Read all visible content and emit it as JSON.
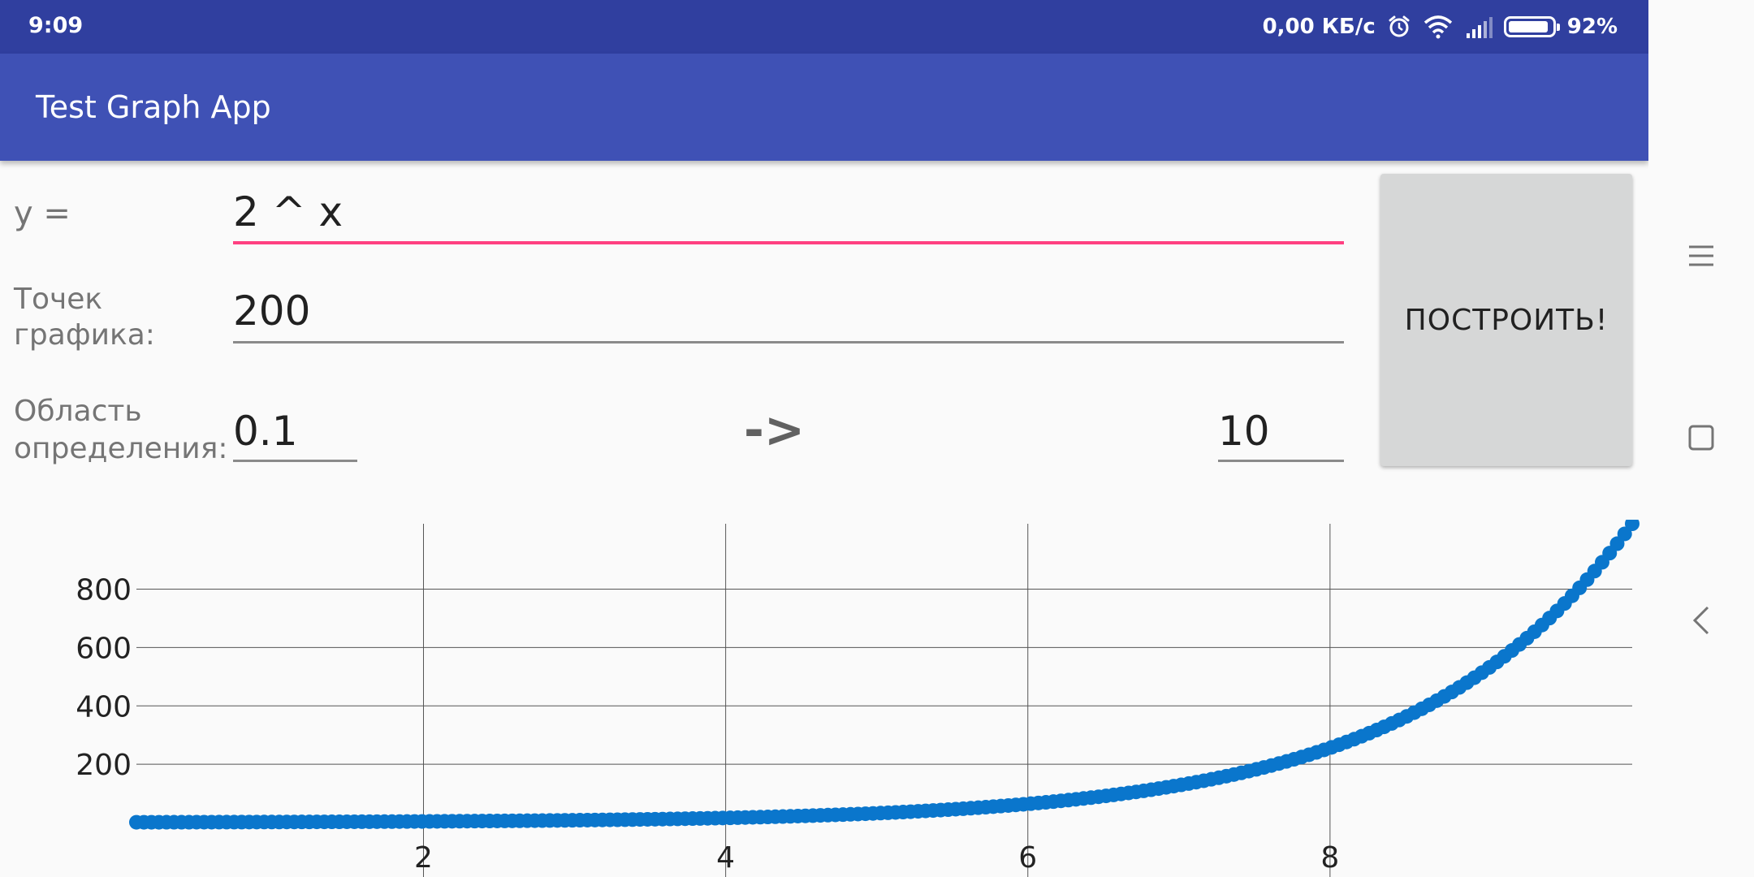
{
  "status_bar": {
    "time": "9:09",
    "network_speed": "0,00 КБ/с",
    "battery_percent": "92%",
    "battery_level": 0.92,
    "icons": [
      "alarm-icon",
      "wifi-icon",
      "signal-icon",
      "battery-icon"
    ]
  },
  "app_bar": {
    "title": "Test Graph App"
  },
  "form": {
    "function_label": "y =",
    "function_value": "2 ^ x",
    "points_label_line1": "Точек",
    "points_label_line2": "графика:",
    "points_value": "200",
    "domain_label_line1": "Область",
    "domain_label_line2": "определения:",
    "domain_from": "0.1",
    "domain_arrow": "->",
    "domain_to": "10",
    "build_button_label": "ПОСТРОИТЬ!"
  },
  "colors": {
    "status_bar": "#303f9f",
    "app_bar": "#3f51b5",
    "accent": "#ff4081",
    "series": "#0a76cc",
    "button": "#d6d7d7"
  },
  "nav_bar": {
    "icons": [
      "menu-icon",
      "home-square-icon",
      "back-icon"
    ]
  },
  "chart_data": {
    "type": "scatter",
    "x_range": [
      0.1,
      10
    ],
    "y_range": [
      0,
      1024
    ],
    "point_count": 200,
    "function": "2^x",
    "xticks": [
      2,
      4,
      6,
      8
    ],
    "yticks": [
      200,
      400,
      600,
      800
    ],
    "grid": true,
    "series": [
      {
        "function": "2^x",
        "x_start": 0.1,
        "x_end": 10,
        "count": 200,
        "color": "#0a76cc"
      }
    ]
  }
}
